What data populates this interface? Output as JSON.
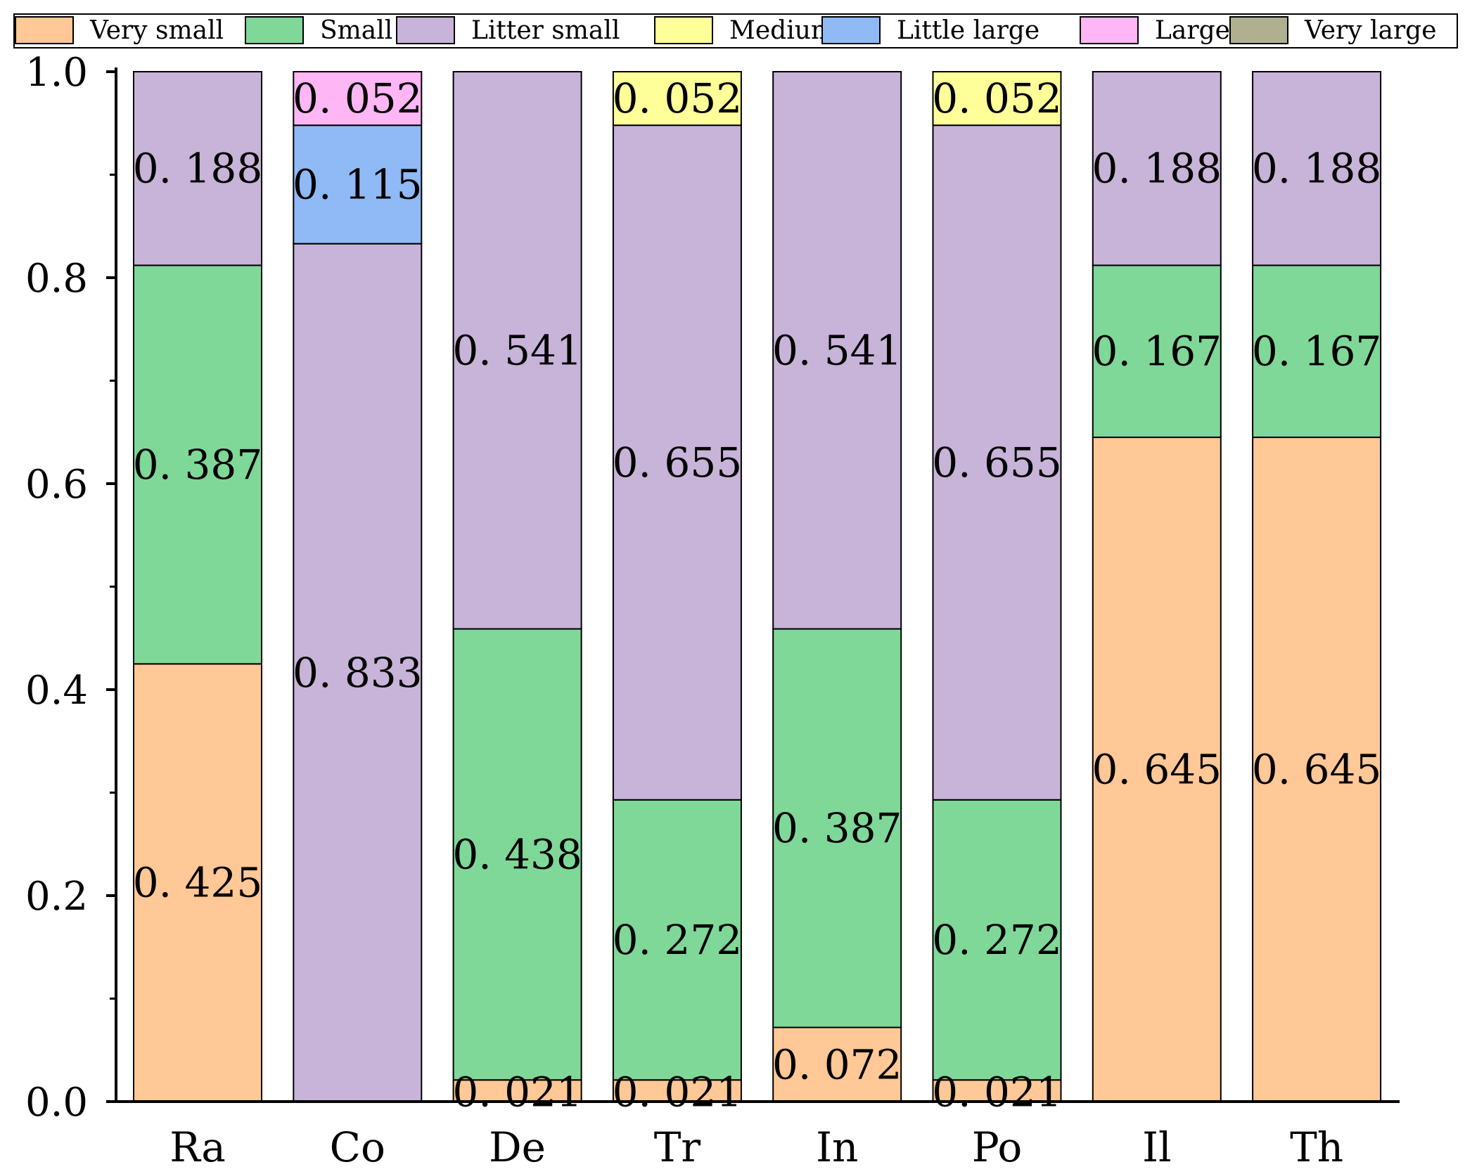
{
  "chart_data": {
    "type": "bar",
    "stacked": true,
    "title": "",
    "xlabel": "",
    "ylabel": "",
    "ylim": [
      0,
      1.0
    ],
    "yticks": [
      "0.0",
      "0.2",
      "0.4",
      "0.6",
      "0.8",
      "1.0"
    ],
    "categories": [
      "Ra",
      "Co",
      "De",
      "Tr",
      "In",
      "Po",
      "Il",
      "Th"
    ],
    "legend_position": "top",
    "series": [
      {
        "name": "Very small",
        "color": "#FFC896",
        "values": [
          0.425,
          0,
          0.021,
          0.021,
          0.072,
          0.021,
          0.645,
          0.645
        ],
        "labels": [
          "0. 425",
          "",
          "0. 021",
          "0. 021",
          "0. 072",
          "0. 021",
          "0. 645",
          "0. 645"
        ]
      },
      {
        "name": "Small",
        "color": "#7FD898",
        "values": [
          0.387,
          0,
          0.438,
          0.272,
          0.387,
          0.272,
          0.167,
          0.167
        ],
        "labels": [
          "0. 387",
          "",
          "0. 438",
          "0. 272",
          "0. 387",
          "0. 272",
          "0. 167",
          "0. 167"
        ]
      },
      {
        "name": "Litter small",
        "color": "#C8B3D9",
        "values": [
          0.188,
          0.833,
          0.541,
          0.655,
          0.541,
          0.655,
          0.188,
          0.188
        ],
        "labels": [
          "0. 188",
          "0. 833",
          "0. 541",
          "0. 655",
          "0. 541",
          "0. 655",
          "0. 188",
          "0. 188"
        ]
      },
      {
        "name": "Medium",
        "color": "#FFFF99",
        "values": [
          0,
          0,
          0,
          0.052,
          0,
          0.052,
          0,
          0
        ],
        "labels": [
          "",
          "",
          "",
          "0. 052",
          "",
          "0. 052",
          "",
          ""
        ]
      },
      {
        "name": "Little large",
        "color": "#8FBAF5",
        "values": [
          0,
          0.115,
          0,
          0,
          0,
          0,
          0,
          0
        ],
        "labels": [
          "",
          "0. 115",
          "",
          "",
          "",
          "",
          "",
          ""
        ]
      },
      {
        "name": "Large",
        "color": "#FFB6F5",
        "values": [
          0,
          0.052,
          0,
          0,
          0,
          0,
          0,
          0
        ],
        "labels": [
          "",
          "0. 052",
          "",
          "",
          "",
          "",
          "",
          ""
        ]
      },
      {
        "name": "Very large",
        "color": "#B0B090",
        "values": [
          0,
          0,
          0,
          0,
          0,
          0,
          0,
          0
        ],
        "labels": [
          "",
          "",
          "",
          "",
          "",
          "",
          "",
          ""
        ]
      }
    ]
  }
}
